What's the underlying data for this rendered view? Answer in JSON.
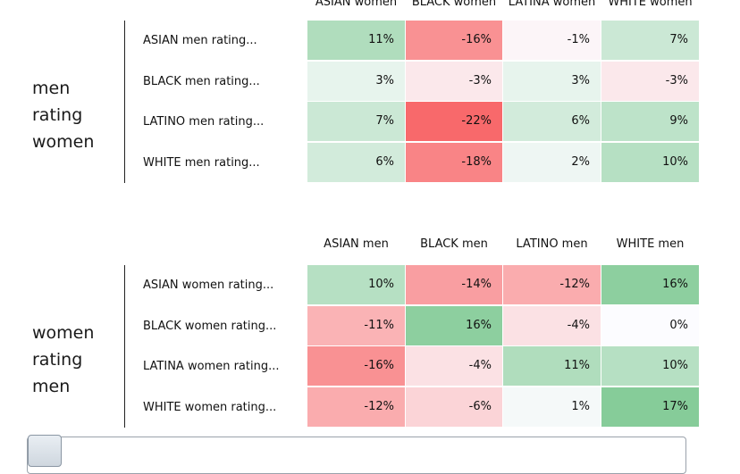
{
  "chart_data": [
    {
      "type": "heatmap",
      "group_label": "men rating women",
      "columns": [
        "ASIAN women",
        "BLACK women",
        "LATINA women",
        "WHITE women"
      ],
      "rows": [
        "ASIAN men rating...",
        "BLACK men rating...",
        "LATINO men rating...",
        "WHITE men rating..."
      ],
      "values": [
        [
          11,
          -16,
          -1,
          7
        ],
        [
          3,
          -3,
          3,
          -3
        ],
        [
          7,
          -22,
          6,
          9
        ],
        [
          6,
          -18,
          2,
          10
        ]
      ],
      "labels": [
        [
          "11%",
          "-16%",
          "-1%",
          "7%"
        ],
        [
          "3%",
          "-3%",
          "3%",
          "-3%"
        ],
        [
          "7%",
          "-22%",
          "6%",
          "9%"
        ],
        [
          "6%",
          "-18%",
          "2%",
          "10%"
        ]
      ]
    },
    {
      "type": "heatmap",
      "group_label": "women rating men",
      "columns": [
        "ASIAN men",
        "BLACK men",
        "LATINO men",
        "WHITE men"
      ],
      "rows": [
        "ASIAN women rating...",
        "BLACK women rating...",
        "LATINA women rating...",
        "WHITE women rating..."
      ],
      "values": [
        [
          10,
          -14,
          -12,
          16
        ],
        [
          -11,
          16,
          -4,
          0
        ],
        [
          -16,
          -4,
          11,
          10
        ],
        [
          -12,
          -6,
          1,
          17
        ]
      ],
      "labels": [
        [
          "10%",
          "-14%",
          "-12%",
          "16%"
        ],
        [
          "-11%",
          "16%",
          "-4%",
          "0%"
        ],
        [
          "-16%",
          "-4%",
          "11%",
          "10%"
        ],
        [
          "-12%",
          "-6%",
          "1%",
          "17%"
        ]
      ]
    }
  ],
  "colors": {
    "positive": "#63be7b",
    "negative": "#f8696b",
    "neutral": "#fcfcff"
  },
  "color_scale": {
    "min": -22,
    "max": 22
  }
}
